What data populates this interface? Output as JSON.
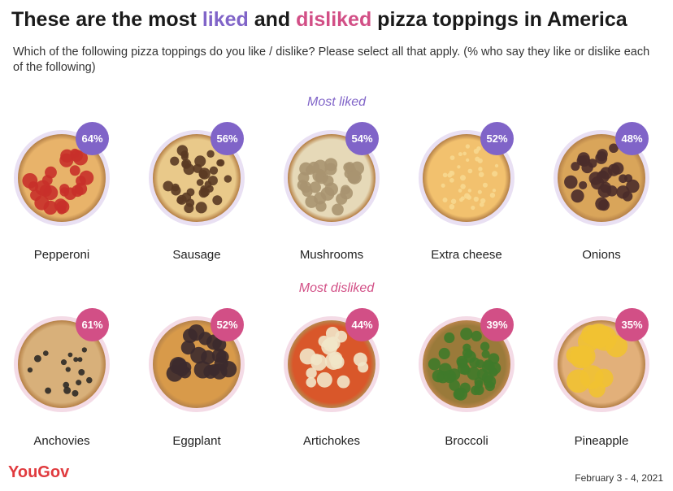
{
  "chart_data": {
    "type": "bar",
    "title_parts": [
      "These are the most ",
      "liked",
      " and ",
      "disliked",
      " pizza toppings in America"
    ],
    "subtitle": "Which of the following pizza toppings do you like / dislike? Please select all that apply. (% who say they like or dislike each of the following)",
    "liked": {
      "label": "Most liked",
      "categories": [
        "Pepperoni",
        "Sausage",
        "Mushrooms",
        "Extra cheese",
        "Onions"
      ],
      "values": [
        64,
        56,
        54,
        52,
        48
      ]
    },
    "disliked": {
      "label": "Most disliked",
      "categories": [
        "Anchovies",
        "Eggplant",
        "Artichokes",
        "Broccoli",
        "Pineapple"
      ],
      "values": [
        61,
        52,
        44,
        39,
        35
      ]
    },
    "unit": "%"
  },
  "footer": {
    "logo": "YouGov",
    "date": "February 3 - 4, 2021"
  },
  "colors": {
    "liked": "#8064c8",
    "disliked": "#d24f86"
  }
}
